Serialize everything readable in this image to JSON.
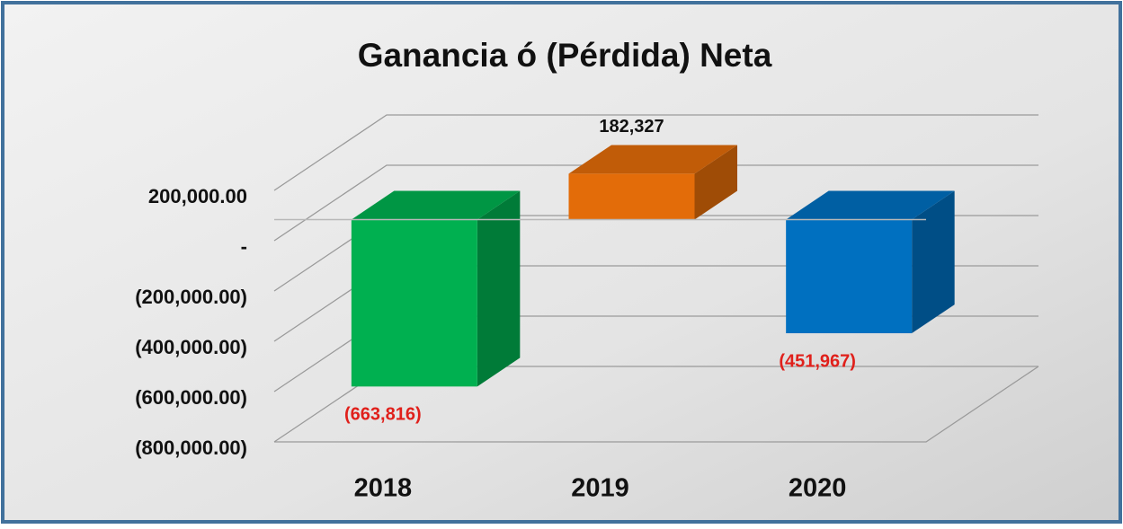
{
  "chart_data": {
    "type": "bar3d",
    "title": "Ganancia ó (Pérdida)  Neta",
    "categories": [
      "2018",
      "2019",
      "2020"
    ],
    "values": [
      -663816,
      182327,
      -451967
    ],
    "value_labels": [
      "(663,816)",
      "182,327",
      "(451,967)"
    ],
    "colors": [
      "#00b050",
      "#e36c09",
      "#0070c0"
    ],
    "ylim": [
      -800000,
      200000
    ],
    "yticks": [
      {
        "value": 200000,
        "label": "200,000.00"
      },
      {
        "value": 0,
        "label": "-"
      },
      {
        "value": -200000,
        "label": "(200,000.00)"
      },
      {
        "value": -400000,
        "label": "(400,000.00)"
      },
      {
        "value": -600000,
        "label": "(600,000.00)"
      },
      {
        "value": -800000,
        "label": "(800,000.00)"
      }
    ],
    "grid": true
  }
}
